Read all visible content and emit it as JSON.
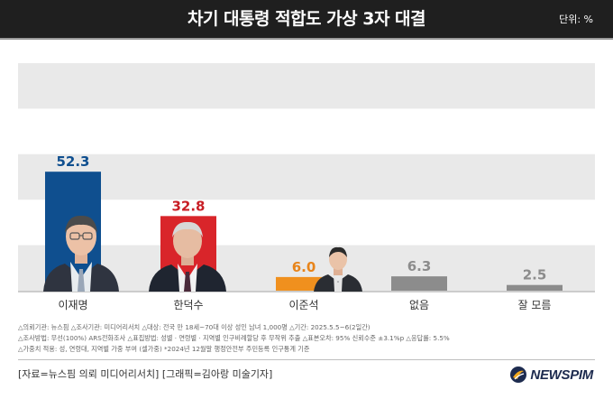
{
  "header": {
    "title": "차기 대통령 적합도 가상 3자 대결",
    "unit": "단위: %"
  },
  "chart_data": {
    "type": "bar",
    "categories": [
      "이재명",
      "한덕수",
      "이준석",
      "없음",
      "잘 모름"
    ],
    "values": [
      52.3,
      32.8,
      6.0,
      6.3,
      2.5
    ],
    "value_labels": [
      "52.3",
      "32.8",
      "6.0",
      "6.3",
      "2.5"
    ],
    "ylim": [
      0,
      100
    ],
    "grid": "horizontal bands",
    "bar_colors": [
      "#0f4f8f",
      "#d9252a",
      "#f0901e",
      "#8c8c8c",
      "#8c8c8c"
    ],
    "label_colors": [
      "#0f4f8f",
      "#c81e25",
      "#e8841a",
      "#8c8c8c",
      "#8c8c8c"
    ]
  },
  "notes": {
    "line1": "△의뢰기관: 뉴스핌 △조사기관: 미디어리서치 △대상: 전국 만 18세~70대 이상 성인 남녀 1,000명 △기간: 2025.5.5~6(2일간)",
    "line2": "△조사방법: 무선(100%) ARS전화조사 △표집방법: 성별 · 연령별 · 지역별 인구비례할당 후 무작위 추출 △표본오차: 95% 신뢰수준 ±3.1%p △응답률: 5.5%",
    "line3": "△가중치 적용: 성, 연령대, 지역별 가중 부여 (셀가중) *2024년 12월말 행정안전부 주민등록 인구통계 기준"
  },
  "footer": {
    "credit": "[자료=뉴스핌 의뢰 미디어리서치] [그래픽=김아랑 미술기자]",
    "logo": "NEWSPIM"
  },
  "colors": {
    "header_bg": "#1f1f1f",
    "band": "#e9e9e9",
    "brand": "#1d2b4f"
  },
  "photos": {
    "person1": "portrait-icon",
    "person2": "portrait-icon",
    "person3": "portrait-icon"
  }
}
